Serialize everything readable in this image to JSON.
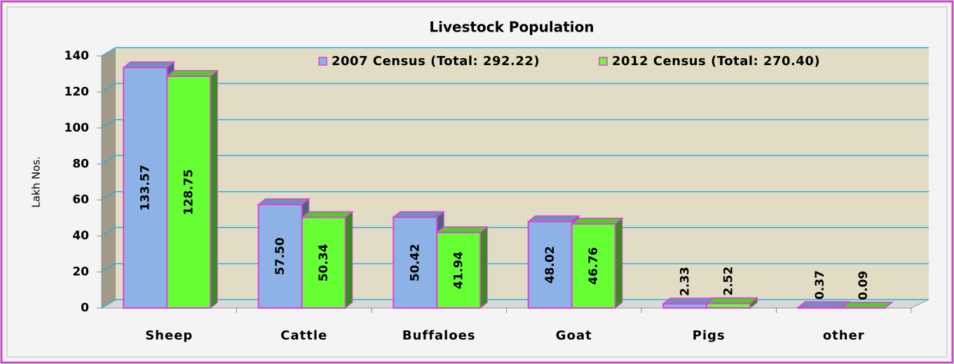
{
  "chart_data": {
    "type": "bar3d",
    "title": "Livestock Population",
    "ylabel": "Lakh Nos.",
    "categories": [
      "Sheep",
      "Cattle",
      "Buffaloes",
      "Goat",
      "Pigs",
      "other"
    ],
    "series": [
      {
        "name": "2007 Census (Total: 292.22)",
        "color": "#8db3e6",
        "values": [
          133.57,
          57.5,
          50.42,
          48.02,
          2.33,
          0.37
        ],
        "value_labels": [
          "133.57",
          "57.50",
          "50.42",
          "48.02",
          "2.33",
          "0.37"
        ]
      },
      {
        "name": "2012 Census (Total: 270.40)",
        "color": "#66ff33",
        "values": [
          128.75,
          50.34,
          41.94,
          46.76,
          2.52,
          0.09
        ],
        "value_labels": [
          "128.75",
          "50.34",
          "41.94",
          "46.76",
          "2.52",
          "0.09"
        ]
      }
    ],
    "ylim": [
      0,
      140
    ],
    "yticks": [
      0,
      20,
      40,
      60,
      80,
      100,
      120,
      140
    ],
    "grid": true,
    "legend": "top"
  }
}
